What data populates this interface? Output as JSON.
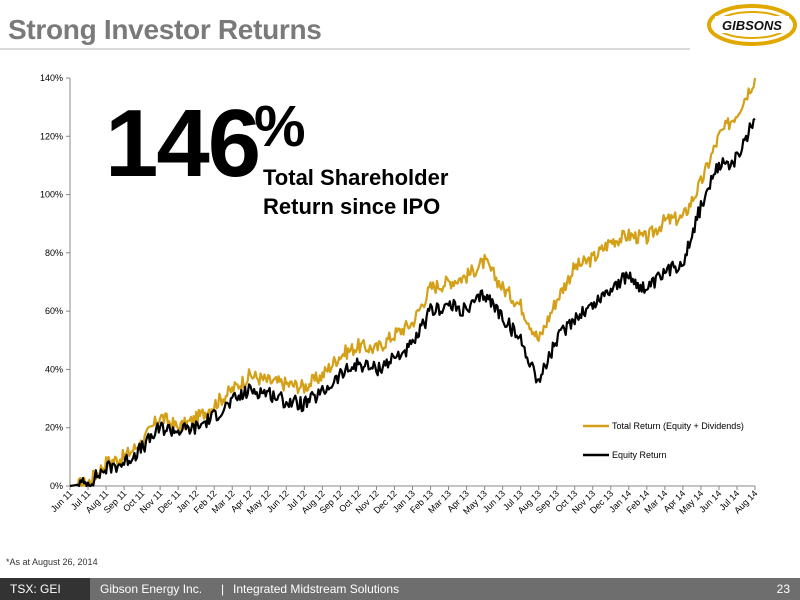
{
  "slide": {
    "title": "Strong Investor Returns",
    "logo_text": "GIBSONS",
    "headline_number": "146",
    "headline_suffix": "%",
    "headline_caption_line1": "Total Shareholder",
    "headline_caption_line2": "Return since IPO",
    "footnote": "*As at August 26, 2014",
    "footer_ticker": "TSX: GEI",
    "footer_company": "Gibson Energy Inc.",
    "footer_separator": "|",
    "footer_tagline": "Integrated Midstream Solutions",
    "page_number": "23"
  },
  "colors": {
    "total_return": "#d4a017",
    "equity_return": "#000000",
    "title": "#7a7a7a",
    "logo_gold": "#e0a800",
    "footer_dark": "#333333",
    "footer_mid": "#6e6e6e"
  },
  "chart_data": {
    "type": "line",
    "title": "",
    "xlabel": "",
    "ylabel": "",
    "ylim": [
      0,
      140
    ],
    "y_ticks": [
      0,
      20,
      40,
      60,
      80,
      100,
      120,
      140
    ],
    "y_tick_labels": [
      "0%",
      "20%",
      "40%",
      "60%",
      "80%",
      "100%",
      "120%",
      "140%"
    ],
    "grid": false,
    "legend_position": "right",
    "categories": [
      "Jun 11",
      "Jul 11",
      "Aug 11",
      "Sep 11",
      "Oct 11",
      "Nov 11",
      "Dec 11",
      "Jan 12",
      "Feb 12",
      "Mar 12",
      "Apr 12",
      "May 12",
      "Jun 12",
      "Jul 12",
      "Aug 12",
      "Sep 12",
      "Oct 12",
      "Nov 12",
      "Dec 12",
      "Jan 13",
      "Feb 13",
      "Mar 13",
      "Apr 13",
      "May 13",
      "Jun 13",
      "Jul 13",
      "Aug 13",
      "Sep 13",
      "Oct 13",
      "Nov 13",
      "Dec 13",
      "Jan 14",
      "Feb 14",
      "Mar 14",
      "Apr 14",
      "May 14",
      "Jun 14",
      "Jul 14",
      "Aug 14"
    ],
    "series": [
      {
        "name": "Total Return (Equity + Dividends)",
        "color": "#d4a017",
        "values": [
          0,
          1,
          8,
          10,
          15,
          24,
          20,
          23,
          28,
          33,
          38,
          36,
          35,
          34,
          38,
          45,
          48,
          47,
          52,
          56,
          68,
          70,
          72,
          77,
          68,
          62,
          50,
          64,
          75,
          78,
          84,
          86,
          85,
          91,
          92,
          104,
          120,
          128,
          140
        ]
      },
      {
        "name": "Equity Return",
        "color": "#000000",
        "values": [
          0,
          1,
          6,
          8,
          13,
          20,
          19,
          20,
          24,
          29,
          33,
          32,
          29,
          28,
          32,
          38,
          42,
          40,
          44,
          48,
          60,
          62,
          60,
          66,
          58,
          50,
          36,
          50,
          58,
          62,
          68,
          72,
          67,
          73,
          77,
          96,
          110,
          112,
          126
        ]
      }
    ]
  }
}
